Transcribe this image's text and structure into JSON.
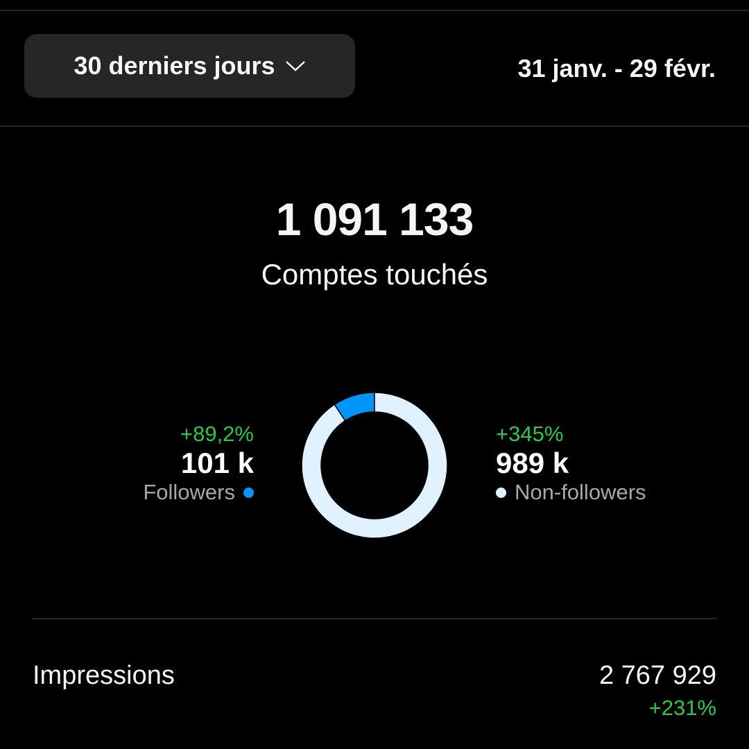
{
  "header": {
    "period_label": "30 derniers jours",
    "date_range": "31 janv. - 29 févr."
  },
  "reach": {
    "total": "1 091 133",
    "label": "Comptes touchés"
  },
  "followers": {
    "delta": "+89,2%",
    "value": "101 k",
    "label": "Followers",
    "color": "#0095f6"
  },
  "non_followers": {
    "delta": "+345%",
    "value": "989 k",
    "label": "Non-followers",
    "color": "#e0f1ff"
  },
  "chart_data": {
    "type": "pie",
    "style": "donut",
    "categories": [
      "Followers",
      "Non-followers"
    ],
    "values": [
      101,
      989
    ],
    "unit": "k",
    "colors": [
      "#0095f6",
      "#e0f1ff"
    ]
  },
  "impressions": {
    "label": "Impressions",
    "value": "2 767 929",
    "delta": "+231%"
  },
  "colors": {
    "positive": "#2ac84c",
    "background": "#000000",
    "button": "#262626"
  }
}
